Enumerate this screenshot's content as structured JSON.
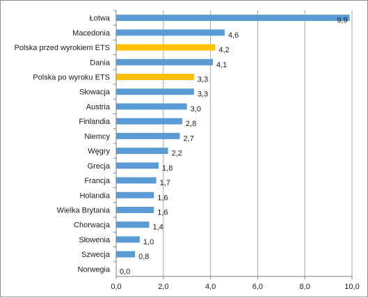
{
  "chart_data": {
    "type": "bar",
    "orientation": "horizontal",
    "categories": [
      "Łotwa",
      "Macedonia",
      "Polska przed wyrokiem ETS",
      "Dania",
      "Polska po wyroku ETS",
      "Słowacja",
      "Austria",
      "Finlandia",
      "Niemcy",
      "Węgry",
      "Grecja",
      "Francja",
      "Holandia",
      "Wielka Brytania",
      "Chorwacja",
      "Słowenia",
      "Szwecja",
      "Norwegia"
    ],
    "values": [
      9.9,
      4.6,
      4.2,
      4.1,
      3.3,
      3.3,
      3.0,
      2.8,
      2.7,
      2.2,
      1.8,
      1.7,
      1.6,
      1.6,
      1.4,
      1.0,
      0.8,
      0.0
    ],
    "value_labels": [
      "9,9",
      "4,6",
      "4,2",
      "4,1",
      "3,3",
      "3,3",
      "3,0",
      "2,8",
      "2,7",
      "2,2",
      "1,8",
      "1,7",
      "1,6",
      "1,6",
      "1,4",
      "1,0",
      "0,8",
      "0,0"
    ],
    "highlight": [
      false,
      false,
      true,
      false,
      true,
      false,
      false,
      false,
      false,
      false,
      false,
      false,
      false,
      false,
      false,
      false,
      false,
      false
    ],
    "colors": {
      "default": "#5b9bd5",
      "highlight": "#ffc000",
      "grid": "#a6a6a6",
      "axis": "#7f7f7f"
    },
    "xlim": [
      0,
      10
    ],
    "xticks": [
      0,
      2,
      4,
      6,
      8,
      10
    ],
    "xtick_labels": [
      "0,0",
      "2,0",
      "4,0",
      "6,0",
      "8,0",
      "10,0"
    ],
    "grid": true,
    "legend": "none"
  }
}
